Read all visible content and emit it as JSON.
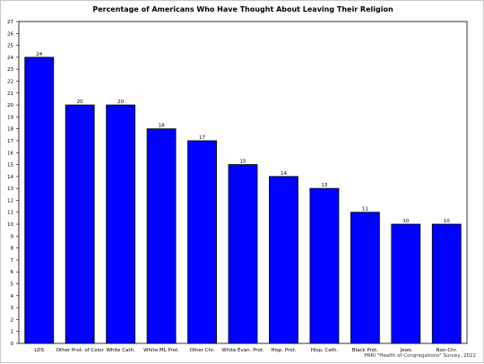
{
  "chart_data": {
    "type": "bar",
    "title": "Percentage of Americans Who Have Thought About Leaving Their Religion",
    "source": "PRRI \"Health of Congregations\" Survey, 2022",
    "categories": [
      "LDS",
      "Other Prot. of Color",
      "White Cath.",
      "White ML Prot.",
      "Other Chr.",
      "White Evan. Prot.",
      "Hisp. Prot.",
      "Hisp. Cath.",
      "Black Prot.",
      "Jews",
      "Non-Chr."
    ],
    "values": [
      24,
      20,
      20,
      18,
      17,
      15,
      14,
      13,
      11,
      10,
      10
    ],
    "xlabel": "",
    "ylabel": "",
    "ylim": [
      0,
      27
    ],
    "yticks": [
      0,
      1,
      2,
      3,
      4,
      5,
      6,
      7,
      8,
      9,
      10,
      11,
      12,
      13,
      14,
      15,
      16,
      17,
      18,
      19,
      20,
      21,
      22,
      23,
      24,
      25,
      26,
      27
    ],
    "grid": false,
    "bar_color": "#0000ff",
    "bar_edge_color": "#000000"
  }
}
